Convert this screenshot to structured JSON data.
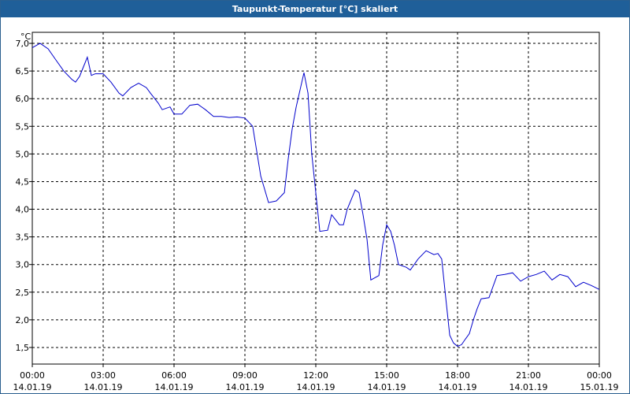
{
  "window": {
    "title": "Taupunkt-Temperatur [°C] skaliert"
  },
  "colors": {
    "titlebar": "#1f5f99",
    "line": "#0000cc",
    "grid": "#000000"
  },
  "chart_data": {
    "type": "line",
    "title": "Taupunkt-Temperatur [°C] skaliert",
    "ylabel": "°C",
    "xlabel": "",
    "ylim": [
      1.2,
      7.2
    ],
    "xlim": [
      0,
      24
    ],
    "grid": true,
    "yticks": [
      "7,0",
      "6,5",
      "6,0",
      "5,5",
      "5,0",
      "4,5",
      "4,0",
      "3,5",
      "3,0",
      "2,5",
      "2,0",
      "1,5"
    ],
    "ytick_values": [
      7.0,
      6.5,
      6.0,
      5.5,
      5.0,
      4.5,
      4.0,
      3.5,
      3.0,
      2.5,
      2.0,
      1.5
    ],
    "xticks": [
      {
        "time": "00:00",
        "date": "14.01.19"
      },
      {
        "time": "03:00",
        "date": "14.01.19"
      },
      {
        "time": "06:00",
        "date": "14.01.19"
      },
      {
        "time": "09:00",
        "date": "14.01.19"
      },
      {
        "time": "12:00",
        "date": "14.01.19"
      },
      {
        "time": "15:00",
        "date": "14.01.19"
      },
      {
        "time": "18:00",
        "date": "14.01.19"
      },
      {
        "time": "21:00",
        "date": "14.01.19"
      },
      {
        "time": "00:00",
        "date": "15.01.19"
      }
    ],
    "xtick_values": [
      0,
      3,
      6,
      9,
      12,
      15,
      18,
      21,
      24
    ],
    "series": [
      {
        "x": [
          0,
          0.33,
          0.67,
          1.0,
          1.33,
          1.67,
          1.83,
          2.0,
          2.17,
          2.33,
          2.5,
          2.67,
          3.0,
          3.33,
          3.67,
          3.83,
          4.17,
          4.5,
          4.83,
          5.0,
          5.33,
          5.5,
          5.83,
          6.0,
          6.33,
          6.67,
          7.0,
          7.33,
          7.67,
          8.0,
          8.33,
          8.67,
          9.0,
          9.33,
          9.67,
          10.0,
          10.33,
          10.67,
          10.83,
          11.0,
          11.17,
          11.5,
          11.67,
          11.83,
          12.0,
          12.17,
          12.5,
          12.67,
          13.0,
          13.17,
          13.33,
          13.67,
          13.83,
          14.0,
          14.17,
          14.33,
          14.67,
          14.83,
          15.0,
          15.17,
          15.33,
          15.5,
          15.83,
          16.0,
          16.33,
          16.67,
          17.0,
          17.17,
          17.33,
          17.5,
          17.67,
          17.83,
          18.0,
          18.17,
          18.33,
          18.5,
          18.67,
          18.83,
          19.0,
          19.33,
          19.67,
          20.0,
          20.33,
          20.67,
          21.0,
          21.33,
          21.67,
          22.0,
          22.33,
          22.67,
          23.0,
          23.33,
          23.67,
          24.0
        ],
        "y": [
          6.92,
          7.0,
          6.9,
          6.7,
          6.5,
          6.35,
          6.3,
          6.4,
          6.58,
          6.75,
          6.42,
          6.45,
          6.45,
          6.3,
          6.1,
          6.05,
          6.2,
          6.28,
          6.2,
          6.1,
          5.92,
          5.8,
          5.85,
          5.72,
          5.72,
          5.88,
          5.9,
          5.8,
          5.68,
          5.68,
          5.66,
          5.67,
          5.65,
          5.5,
          4.6,
          4.12,
          4.15,
          4.3,
          4.9,
          5.45,
          5.85,
          6.47,
          6.1,
          5.0,
          4.3,
          3.6,
          3.62,
          3.9,
          3.72,
          3.72,
          4.0,
          4.35,
          4.3,
          3.9,
          3.45,
          2.72,
          2.8,
          3.35,
          3.72,
          3.6,
          3.35,
          3.0,
          2.95,
          2.9,
          3.1,
          3.25,
          3.18,
          3.2,
          3.1,
          2.4,
          1.72,
          1.58,
          1.52,
          1.55,
          1.65,
          1.75,
          2.0,
          2.2,
          2.38,
          2.4,
          2.8,
          2.82,
          2.85,
          2.7,
          2.78,
          2.82,
          2.88,
          2.72,
          2.82,
          2.78,
          2.6,
          2.68,
          2.62,
          2.55
        ]
      }
    ]
  }
}
